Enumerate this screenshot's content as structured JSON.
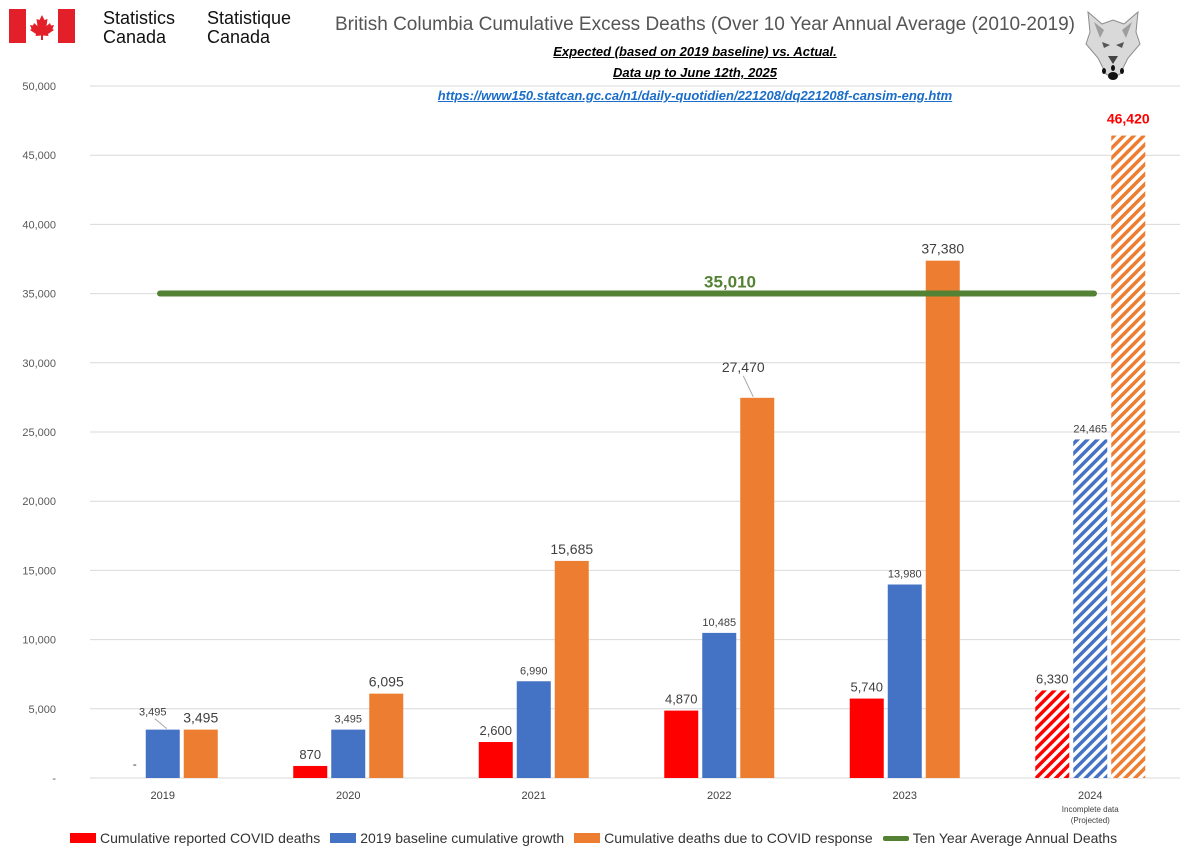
{
  "header": {
    "logo_en_line1": "Statistics",
    "logo_en_line2": "Canada",
    "logo_fr_line1": "Statistique",
    "logo_fr_line2": "Canada",
    "flag_icon": "canada-flag-icon",
    "wolf_icon": "wolf-emblem-icon"
  },
  "chart_data": {
    "type": "bar",
    "title": "British Columbia Cumulative Excess Deaths (Over 10 Year Annual Average (2010-2019)",
    "subtitle_lines": [
      "Expected (based on 2019 baseline) vs. Actual.",
      "Data up to June 12th, 2025"
    ],
    "source_url": "https://www150.statcan.gc.ca/n1/daily-quotidien/221208/dq221208f-cansim-eng.htm",
    "categories": [
      "2019",
      "2020",
      "2021",
      "2022",
      "2023",
      "2024"
    ],
    "category_notes": [
      "",
      "",
      "",
      "",
      "",
      "Incomplete data (Projected)"
    ],
    "series": [
      {
        "name": "Cumulative reported COVID deaths",
        "color": "#ff0000",
        "values": [
          0,
          870,
          2600,
          4870,
          5740,
          6330
        ],
        "labels": [
          "-",
          "870",
          "2,600",
          "4,870",
          "5,740",
          "6,330"
        ]
      },
      {
        "name": "2019 baseline cumulative growth",
        "color": "#4472c4",
        "values": [
          3495,
          3495,
          6990,
          10485,
          13980,
          24465
        ],
        "labels": [
          "3,495",
          "3,495",
          "6,990",
          "10,485",
          "13,980",
          "24,465"
        ]
      },
      {
        "name": "Cumulative deaths due to COVID response",
        "color": "#ed7d31",
        "values": [
          3495,
          6095,
          15685,
          27470,
          37380,
          46420
        ],
        "labels": [
          "3,495",
          "6,095",
          "15,685",
          "27,470",
          "37,380",
          "46,420"
        ]
      }
    ],
    "reference_line": {
      "name": "Ten Year Average Annual Deaths",
      "value": 35010,
      "label": "35,010",
      "color": "#548235"
    },
    "projected_category_index": 5,
    "ylim": [
      0,
      50000
    ],
    "yticks": [
      0,
      5000,
      10000,
      15000,
      20000,
      25000,
      30000,
      35000,
      40000,
      45000,
      50000
    ],
    "ytick_labels": [
      "-",
      "5,000",
      "10,000",
      "15,000",
      "20,000",
      "25,000",
      "30,000",
      "35,000",
      "40,000",
      "45,000",
      "50,000"
    ],
    "xlabel": "",
    "ylabel": "",
    "grid": true,
    "legend_position": "bottom"
  }
}
